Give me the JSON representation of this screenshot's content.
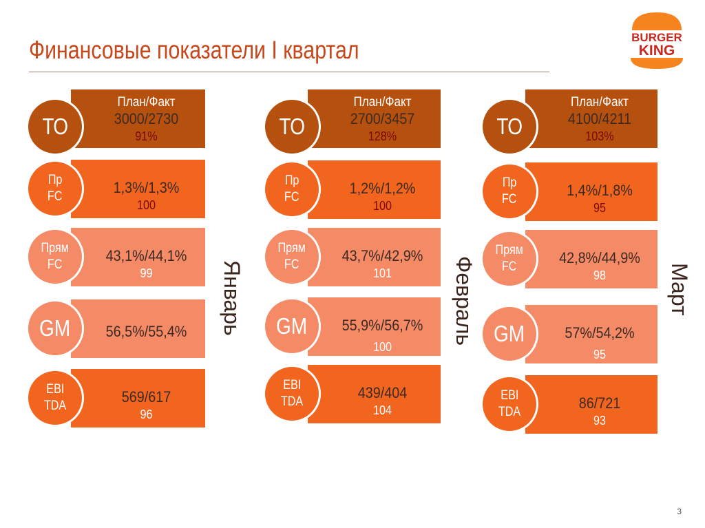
{
  "title": "Финансовые показатели I квартал",
  "logo": {
    "line1": "BURGER",
    "line2": "KING"
  },
  "plan_fact_label": "План/Факт",
  "page_number": "3",
  "colors": {
    "to": "#B5500E",
    "orange": "#F2651F",
    "salmon": "#F58A66",
    "title": "#C8471B"
  },
  "months": [
    {
      "name": "Январь",
      "rows": [
        {
          "key": "to",
          "label": [
            "ТО"
          ],
          "value": "3000/2730",
          "sub": "91%"
        },
        {
          "key": "pr",
          "label": [
            "Пр",
            "FC"
          ],
          "value": "1,3%/1,3%",
          "sub": "100"
        },
        {
          "key": "pf",
          "label": [
            "Прям",
            "FC"
          ],
          "value": "43,1%/44,1%",
          "sub": "99"
        },
        {
          "key": "gm",
          "label": [
            "GM"
          ],
          "value": "56,5%/55,4%",
          "sub": ""
        },
        {
          "key": "eb",
          "label": [
            "EBI",
            "TDA"
          ],
          "value": "569/617",
          "sub": "96"
        }
      ]
    },
    {
      "name": "Февраль",
      "rows": [
        {
          "key": "to",
          "label": [
            "ТО"
          ],
          "value": "2700/3457",
          "sub": "128%"
        },
        {
          "key": "pr",
          "label": [
            "Пр",
            "FC"
          ],
          "value": "1,2%/1,2%",
          "sub": "100"
        },
        {
          "key": "pf",
          "label": [
            "Прям",
            "FC"
          ],
          "value": "43,7%/42,9%",
          "sub": "101"
        },
        {
          "key": "gm",
          "label": [
            "GM"
          ],
          "value": "55,9%/56,7%",
          "sub": "100"
        },
        {
          "key": "eb",
          "label": [
            "EBI",
            "TDA"
          ],
          "value": "439/404",
          "sub": "104"
        }
      ]
    },
    {
      "name": "Март",
      "rows": [
        {
          "key": "to",
          "label": [
            "ТО"
          ],
          "value": "4100/4211",
          "sub": "103%"
        },
        {
          "key": "pr",
          "label": [
            "Пр",
            "FC"
          ],
          "value": "1,4%/1,8%",
          "sub": "95"
        },
        {
          "key": "pf",
          "label": [
            "Прям",
            "FC"
          ],
          "value": "42,8%/44,9%",
          "sub": "98"
        },
        {
          "key": "gm",
          "label": [
            "GM"
          ],
          "value": "57%/54,2%",
          "sub": "95"
        },
        {
          "key": "eb",
          "label": [
            "EBI",
            "TDA"
          ],
          "value": "86/721",
          "sub": "93"
        }
      ]
    }
  ]
}
